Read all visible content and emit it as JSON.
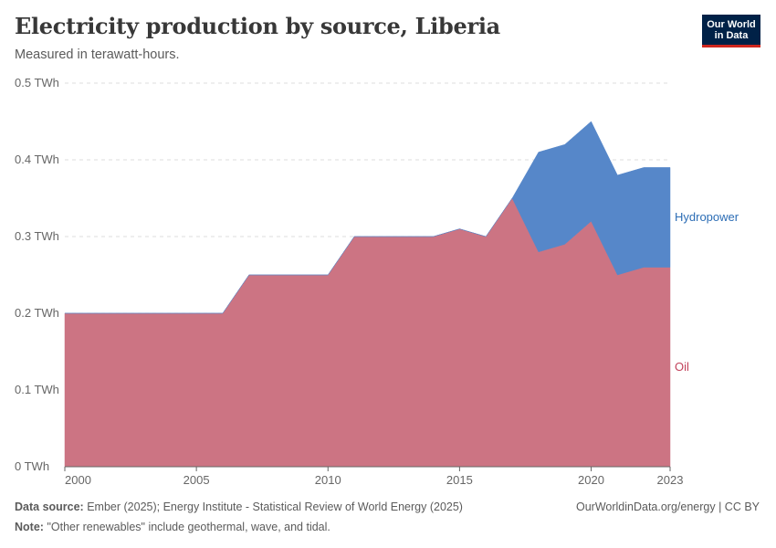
{
  "header": {
    "title": "Electricity production by source, Liberia",
    "subtitle": "Measured in terawatt-hours.",
    "logo_text": "Our World in Data"
  },
  "footer": {
    "source_label": "Data source:",
    "source_text": "Ember (2025); Energy Institute - Statistical Review of World Energy (2025)",
    "note_label": "Note:",
    "note_text": "\"Other renewables\" include geothermal, wave, and tidal.",
    "credit": "OurWorldinData.org/energy | CC BY"
  },
  "colors": {
    "oil": "#cc7483",
    "hydropower": "#5687c9",
    "oil_label": "#c2415a",
    "hydropower_label": "#2c6db5",
    "grid": "#dddddd",
    "axis": "#666666"
  },
  "chart_data": {
    "type": "area",
    "stacked": true,
    "title": "Electricity production by source, Liberia",
    "subtitle": "Measured in terawatt-hours.",
    "x": [
      2000,
      2001,
      2002,
      2003,
      2004,
      2005,
      2006,
      2007,
      2008,
      2009,
      2010,
      2011,
      2012,
      2013,
      2014,
      2015,
      2016,
      2017,
      2018,
      2019,
      2020,
      2021,
      2022,
      2023
    ],
    "series": [
      {
        "name": "Oil",
        "values": [
          0.2,
          0.2,
          0.2,
          0.2,
          0.2,
          0.2,
          0.2,
          0.25,
          0.25,
          0.25,
          0.25,
          0.3,
          0.3,
          0.3,
          0.3,
          0.31,
          0.3,
          0.35,
          0.28,
          0.29,
          0.32,
          0.25,
          0.26,
          0.26
        ]
      },
      {
        "name": "Hydropower",
        "values": [
          0,
          0,
          0,
          0,
          0,
          0,
          0,
          0,
          0,
          0,
          0,
          0,
          0,
          0,
          0,
          0,
          0,
          0,
          0.13,
          0.13,
          0.13,
          0.13,
          0.13,
          0.13
        ]
      }
    ],
    "xlim": [
      2000,
      2023
    ],
    "ylim": [
      0,
      0.5
    ],
    "x_ticks": [
      2000,
      2005,
      2010,
      2015,
      2020,
      2023
    ],
    "y_ticks": [
      0,
      0.1,
      0.2,
      0.3,
      0.4,
      0.5
    ],
    "y_tick_labels": [
      "0 TWh",
      "0.1 TWh",
      "0.2 TWh",
      "0.3 TWh",
      "0.4 TWh",
      "0.5 TWh"
    ],
    "grid": "horizontal dashed",
    "legend": "right, inline labels"
  }
}
